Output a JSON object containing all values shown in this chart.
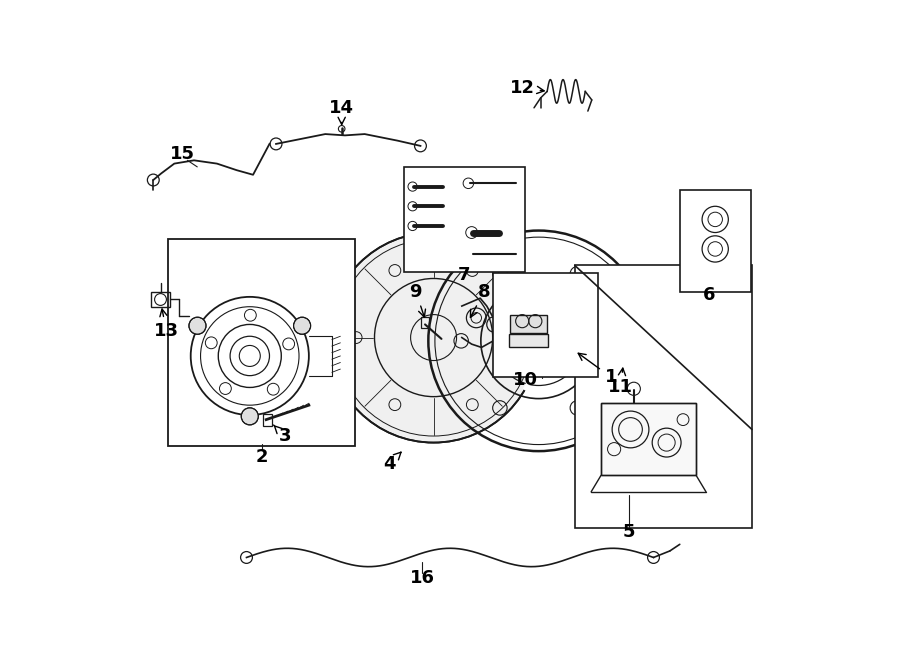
{
  "background_color": "#ffffff",
  "line_color": "#1a1a1a",
  "label_color": "#000000",
  "fig_width": 9.0,
  "fig_height": 6.62
}
